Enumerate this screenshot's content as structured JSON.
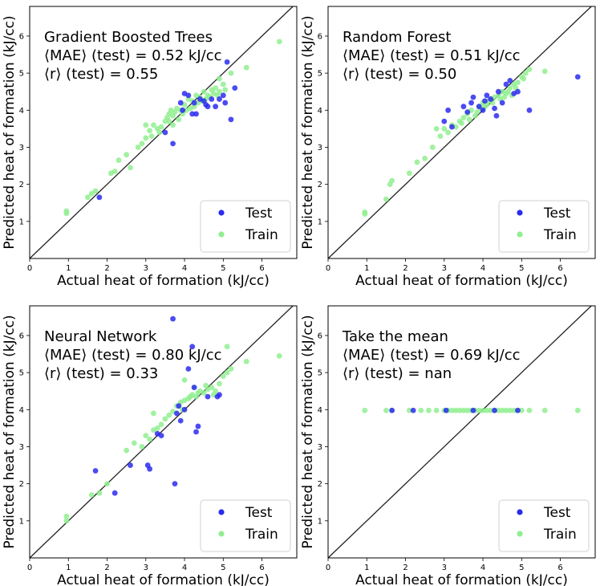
{
  "colors": {
    "test": "#2b2bf0",
    "train": "#90ee90"
  },
  "chart_data": [
    {
      "type": "scatter",
      "title": "Gradient Boosted Trees",
      "mae_text": "⟨MAE⟩ (test) =  0.52 kJ/cc",
      "r_text": "⟨r⟩ (test) = 0.55",
      "xlabel": "Actual heat of formation (kJ/cc)",
      "ylabel": "Predicted heat of formation (kJ/cc)",
      "xlim": [
        0,
        6.9
      ],
      "ylim": [
        0,
        6.8
      ],
      "xticks": [
        0,
        1,
        2,
        3,
        4,
        5,
        6
      ],
      "yticks": [
        1,
        2,
        3,
        4,
        5,
        6
      ],
      "legend": [
        "Test",
        "Train"
      ],
      "series": [
        {
          "name": "Train",
          "points": [
            [
              0.95,
              1.22
            ],
            [
              0.95,
              1.28
            ],
            [
              1.5,
              1.65
            ],
            [
              1.6,
              1.75
            ],
            [
              1.7,
              1.82
            ],
            [
              2.1,
              2.3
            ],
            [
              2.3,
              2.65
            ],
            [
              2.5,
              2.8
            ],
            [
              2.6,
              2.45
            ],
            [
              2.8,
              3.0
            ],
            [
              2.9,
              3.1
            ],
            [
              3.0,
              3.6
            ],
            [
              3.1,
              3.45
            ],
            [
              3.2,
              3.6
            ],
            [
              3.3,
              3.5
            ],
            [
              3.4,
              3.55
            ],
            [
              3.5,
              3.7
            ],
            [
              3.55,
              3.8
            ],
            [
              3.6,
              3.9
            ],
            [
              3.65,
              4.0
            ],
            [
              3.7,
              3.85
            ],
            [
              3.75,
              3.95
            ],
            [
              3.8,
              4.05
            ],
            [
              3.9,
              4.0
            ],
            [
              4.0,
              4.15
            ],
            [
              4.1,
              4.3
            ],
            [
              4.2,
              4.25
            ],
            [
              4.3,
              4.4
            ],
            [
              4.4,
              4.35
            ],
            [
              4.5,
              4.5
            ],
            [
              4.6,
              4.4
            ],
            [
              4.7,
              4.55
            ],
            [
              4.8,
              4.6
            ],
            [
              4.9,
              4.5
            ],
            [
              5.0,
              4.7
            ],
            [
              5.2,
              5.0
            ],
            [
              5.6,
              5.15
            ],
            [
              6.45,
              5.85
            ],
            [
              4.25,
              4.1
            ],
            [
              4.35,
              4.2
            ],
            [
              4.55,
              4.3
            ],
            [
              4.75,
              4.45
            ],
            [
              3.85,
              3.75
            ],
            [
              3.95,
              3.9
            ],
            [
              4.05,
              4.0
            ],
            [
              4.15,
              4.05
            ],
            [
              4.45,
              4.25
            ],
            [
              4.65,
              4.35
            ],
            [
              4.85,
              4.4
            ],
            [
              5.05,
              4.55
            ],
            [
              3.7,
              3.6
            ],
            [
              3.35,
              3.4
            ],
            [
              3.15,
              3.3
            ],
            [
              3.0,
              3.25
            ],
            [
              2.2,
              2.35
            ],
            [
              3.6,
              3.7
            ],
            [
              4.9,
              4.85
            ]
          ]
        },
        {
          "name": "Test",
          "points": [
            [
              1.8,
              1.65
            ],
            [
              3.5,
              3.4
            ],
            [
              3.7,
              3.1
            ],
            [
              3.9,
              4.2
            ],
            [
              4.0,
              4.45
            ],
            [
              4.1,
              4.4
            ],
            [
              4.2,
              3.9
            ],
            [
              4.3,
              3.9
            ],
            [
              4.4,
              4.3
            ],
            [
              4.5,
              4.25
            ],
            [
              4.6,
              4.1
            ],
            [
              4.7,
              4.3
            ],
            [
              4.8,
              4.1
            ],
            [
              4.9,
              4.3
            ],
            [
              5.0,
              4.4
            ],
            [
              5.1,
              5.3
            ],
            [
              5.2,
              3.75
            ],
            [
              5.3,
              4.6
            ],
            [
              4.25,
              4.2
            ],
            [
              3.95,
              4.0
            ],
            [
              4.55,
              4.15
            ],
            [
              5.05,
              4.2
            ]
          ]
        }
      ]
    },
    {
      "type": "scatter",
      "title": "Random Forest",
      "mae_text": "⟨MAE⟩ (test) =  0.51 kJ/cc",
      "r_text": "⟨r⟩ (test) = 0.50",
      "xlabel": "Actual heat of formation (kJ/cc)",
      "ylabel": "Predicted heat of formation (kJ/cc)",
      "xlim": [
        0,
        6.9
      ],
      "ylim": [
        0,
        6.8
      ],
      "xticks": [
        0,
        1,
        2,
        3,
        4,
        5,
        6
      ],
      "yticks": [
        1,
        2,
        3,
        4,
        5,
        6
      ],
      "legend": [
        "Test",
        "Train"
      ],
      "series": [
        {
          "name": "Train",
          "points": [
            [
              0.95,
              1.2
            ],
            [
              0.95,
              1.25
            ],
            [
              1.5,
              1.6
            ],
            [
              1.6,
              2.0
            ],
            [
              1.65,
              2.1
            ],
            [
              2.1,
              2.3
            ],
            [
              2.3,
              2.6
            ],
            [
              2.5,
              2.7
            ],
            [
              2.7,
              3.0
            ],
            [
              2.9,
              3.3
            ],
            [
              3.0,
              3.5
            ],
            [
              3.1,
              3.4
            ],
            [
              3.2,
              3.6
            ],
            [
              3.3,
              3.55
            ],
            [
              3.4,
              3.7
            ],
            [
              3.5,
              3.8
            ],
            [
              3.6,
              3.9
            ],
            [
              3.7,
              4.0
            ],
            [
              3.8,
              3.85
            ],
            [
              3.9,
              4.1
            ],
            [
              4.0,
              4.2
            ],
            [
              4.1,
              4.15
            ],
            [
              4.2,
              4.3
            ],
            [
              4.3,
              4.35
            ],
            [
              4.4,
              4.4
            ],
            [
              4.5,
              4.5
            ],
            [
              4.6,
              4.45
            ],
            [
              4.7,
              4.6
            ],
            [
              4.8,
              4.7
            ],
            [
              4.9,
              4.75
            ],
            [
              5.0,
              4.9
            ],
            [
              5.1,
              5.0
            ],
            [
              5.2,
              5.1
            ],
            [
              5.6,
              5.05
            ],
            [
              3.85,
              3.95
            ],
            [
              3.95,
              4.05
            ],
            [
              4.05,
              4.1
            ],
            [
              4.15,
              4.25
            ],
            [
              4.25,
              4.2
            ],
            [
              4.45,
              4.3
            ],
            [
              4.65,
              4.5
            ],
            [
              4.85,
              4.6
            ],
            [
              5.05,
              4.85
            ],
            [
              3.65,
              3.75
            ],
            [
              3.45,
              3.65
            ],
            [
              2.8,
              3.5
            ],
            [
              4.75,
              4.4
            ],
            [
              4.55,
              4.35
            ]
          ]
        },
        {
          "name": "Test",
          "points": [
            [
              3.0,
              3.7
            ],
            [
              3.1,
              4.0
            ],
            [
              3.2,
              3.55
            ],
            [
              3.5,
              4.1
            ],
            [
              3.6,
              3.95
            ],
            [
              3.7,
              4.2
            ],
            [
              3.75,
              4.35
            ],
            [
              3.9,
              4.1
            ],
            [
              4.0,
              4.0
            ],
            [
              4.1,
              4.4
            ],
            [
              4.2,
              4.3
            ],
            [
              4.3,
              4.05
            ],
            [
              4.35,
              3.85
            ],
            [
              4.4,
              4.5
            ],
            [
              4.5,
              4.2
            ],
            [
              4.6,
              4.7
            ],
            [
              4.7,
              4.8
            ],
            [
              4.8,
              4.45
            ],
            [
              4.9,
              4.5
            ],
            [
              5.2,
              4.0
            ],
            [
              6.45,
              4.9
            ],
            [
              4.05,
              4.25
            ]
          ]
        }
      ]
    },
    {
      "type": "scatter",
      "title": "Neural Network",
      "mae_text": "⟨MAE⟩ (test) =  0.80 kJ/cc",
      "r_text": "⟨r⟩ (test) = 0.33",
      "xlabel": "Actual heat of formation (kJ/cc)",
      "ylabel": "Predicted heat of formation (kJ/cc)",
      "xlim": [
        0,
        6.9
      ],
      "ylim": [
        0,
        6.8
      ],
      "xticks": [
        0,
        1,
        2,
        3,
        4,
        5,
        6
      ],
      "yticks": [
        1,
        2,
        3,
        4,
        5,
        6
      ],
      "legend": [
        "Test",
        "Train"
      ],
      "series": [
        {
          "name": "Train",
          "points": [
            [
              0.95,
              1.0
            ],
            [
              0.95,
              1.12
            ],
            [
              1.6,
              1.7
            ],
            [
              1.8,
              1.75
            ],
            [
              2.0,
              2.0
            ],
            [
              2.5,
              2.9
            ],
            [
              2.7,
              3.1
            ],
            [
              2.9,
              3.0
            ],
            [
              3.0,
              3.3
            ],
            [
              3.1,
              3.2
            ],
            [
              3.2,
              3.45
            ],
            [
              3.3,
              3.5
            ],
            [
              3.4,
              3.6
            ],
            [
              3.5,
              3.75
            ],
            [
              3.6,
              3.85
            ],
            [
              3.7,
              3.95
            ],
            [
              3.8,
              4.1
            ],
            [
              3.9,
              4.2
            ],
            [
              4.0,
              4.25
            ],
            [
              4.1,
              4.3
            ],
            [
              4.2,
              4.4
            ],
            [
              4.3,
              4.35
            ],
            [
              4.4,
              4.5
            ],
            [
              4.5,
              4.45
            ],
            [
              4.6,
              4.55
            ],
            [
              4.7,
              4.6
            ],
            [
              4.8,
              4.5
            ],
            [
              4.9,
              4.7
            ],
            [
              5.0,
              4.9
            ],
            [
              5.1,
              5.0
            ],
            [
              5.2,
              5.1
            ],
            [
              5.6,
              5.3
            ],
            [
              6.45,
              5.45
            ],
            [
              5.1,
              5.7
            ],
            [
              4.0,
              4.8
            ],
            [
              3.2,
              3.9
            ],
            [
              4.25,
              4.6
            ],
            [
              4.55,
              4.65
            ],
            [
              4.75,
              4.4
            ],
            [
              3.95,
              4.0
            ],
            [
              4.15,
              4.35
            ],
            [
              4.35,
              4.45
            ]
          ]
        },
        {
          "name": "Test",
          "points": [
            [
              1.7,
              2.35
            ],
            [
              2.2,
              1.75
            ],
            [
              2.6,
              2.5
            ],
            [
              3.05,
              2.5
            ],
            [
              3.1,
              2.4
            ],
            [
              3.3,
              3.35
            ],
            [
              3.4,
              3.3
            ],
            [
              3.7,
              6.45
            ],
            [
              3.75,
              2.0
            ],
            [
              3.8,
              3.9
            ],
            [
              3.9,
              3.7
            ],
            [
              4.0,
              4.0
            ],
            [
              4.1,
              5.1
            ],
            [
              4.2,
              5.7
            ],
            [
              4.25,
              4.6
            ],
            [
              4.3,
              3.4
            ],
            [
              4.35,
              3.55
            ],
            [
              4.6,
              4.35
            ],
            [
              4.85,
              4.35
            ],
            [
              4.9,
              4.4
            ],
            [
              3.85,
              4.1
            ]
          ]
        }
      ]
    },
    {
      "type": "scatter",
      "title": "Take the mean",
      "mae_text": "⟨MAE⟩ (test) =  0.69 kJ/cc",
      "r_text": "⟨r⟩ (test) =  nan",
      "xlabel": "Actual heat of formation (kJ/cc)",
      "ylabel": "Predicted heat of formation (kJ/cc)",
      "xlim": [
        0,
        6.9
      ],
      "ylim": [
        0,
        6.8
      ],
      "xticks": [
        0,
        1,
        2,
        3,
        4,
        5,
        6
      ],
      "yticks": [
        1,
        2,
        3,
        4,
        5,
        6
      ],
      "legend": [
        "Test",
        "Train"
      ],
      "series": [
        {
          "name": "Train",
          "points": [
            [
              0.95,
              3.98
            ],
            [
              1.5,
              3.98
            ],
            [
              1.65,
              3.98
            ],
            [
              2.1,
              3.98
            ],
            [
              2.4,
              3.98
            ],
            [
              2.6,
              3.98
            ],
            [
              2.8,
              3.98
            ],
            [
              3.0,
              3.98
            ],
            [
              3.1,
              3.98
            ],
            [
              3.2,
              3.98
            ],
            [
              3.3,
              3.98
            ],
            [
              3.4,
              3.98
            ],
            [
              3.5,
              3.98
            ],
            [
              3.6,
              3.98
            ],
            [
              3.7,
              3.98
            ],
            [
              3.8,
              3.98
            ],
            [
              3.9,
              3.98
            ],
            [
              4.0,
              3.98
            ],
            [
              4.1,
              3.98
            ],
            [
              4.2,
              3.98
            ],
            [
              4.3,
              3.98
            ],
            [
              4.4,
              3.98
            ],
            [
              4.5,
              3.98
            ],
            [
              4.6,
              3.98
            ],
            [
              4.7,
              3.98
            ],
            [
              4.8,
              3.98
            ],
            [
              4.9,
              3.98
            ],
            [
              5.0,
              3.98
            ],
            [
              5.2,
              3.98
            ],
            [
              5.6,
              3.98
            ],
            [
              6.45,
              3.98
            ]
          ]
        },
        {
          "name": "Test",
          "points": [
            [
              1.65,
              3.98
            ],
            [
              2.2,
              3.98
            ],
            [
              3.05,
              3.98
            ],
            [
              3.75,
              3.98
            ],
            [
              4.3,
              3.98
            ],
            [
              4.9,
              3.98
            ]
          ]
        }
      ]
    }
  ]
}
